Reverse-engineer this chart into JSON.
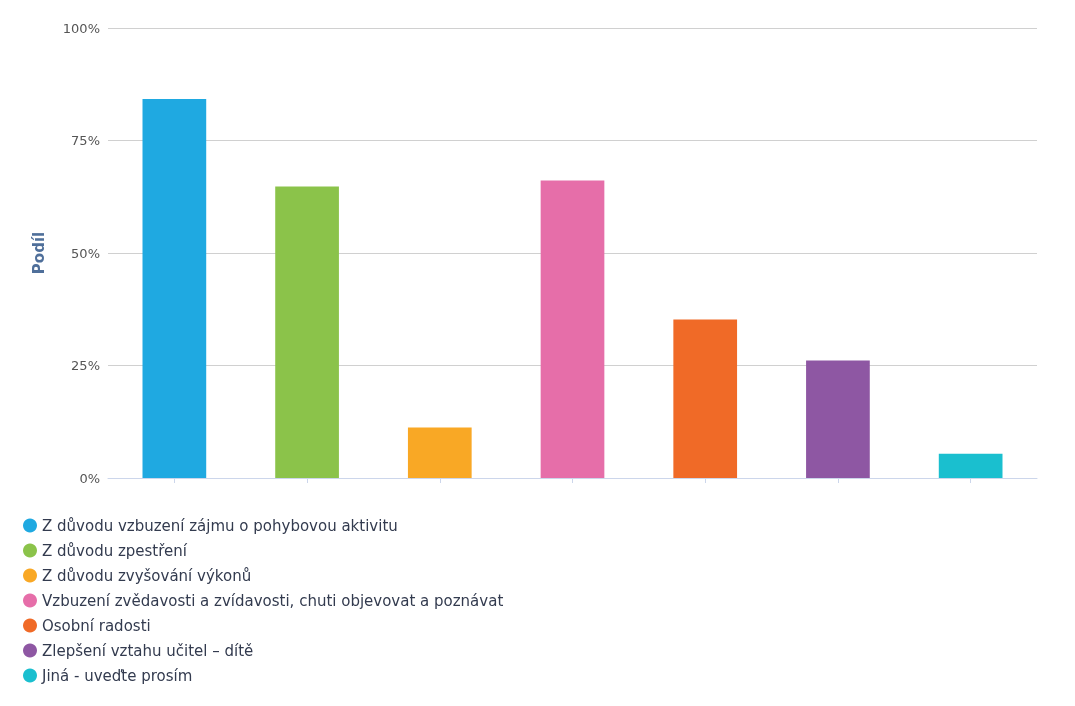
{
  "chart_data": {
    "type": "bar",
    "ylabel": "Podíl",
    "categories": [
      null,
      null,
      null,
      null,
      null,
      null,
      null
    ],
    "series": [
      {
        "name": "Z důvodu vzbuzení zájmu o pohybovou aktivitu",
        "color": "#1fa9e1",
        "values": [
          84.2,
          null,
          null,
          null,
          null,
          null,
          null
        ]
      },
      {
        "name": "Z důvodu zpestření",
        "color": "#8bc34a",
        "values": [
          null,
          64.8,
          null,
          null,
          null,
          null,
          null
        ]
      },
      {
        "name": "Z důvodu zvyšování výkonů",
        "color": "#f9a825",
        "values": [
          null,
          null,
          11.2,
          null,
          null,
          null,
          null
        ]
      },
      {
        "name": "Vzbuzení zvědavosti a zvídavosti, chuti objevovat a poznávat",
        "color": "#e66ea9",
        "values": [
          null,
          null,
          null,
          66.1,
          null,
          null,
          null
        ]
      },
      {
        "name": "Osobní radosti",
        "color": "#f06a27",
        "values": [
          null,
          null,
          null,
          null,
          35.2,
          null,
          null
        ]
      },
      {
        "name": "Zlepšení vztahu učitel – dítě",
        "color": "#8e57a3",
        "values": [
          null,
          null,
          null,
          null,
          null,
          26.1,
          null
        ]
      },
      {
        "name": "Jiná - uveďte prosím",
        "color": "#1abfcf",
        "values": [
          null,
          null,
          null,
          null,
          null,
          null,
          5.4
        ]
      }
    ],
    "ylim": [
      0,
      100
    ],
    "yticks": [
      {
        "value": 0,
        "label": "0%"
      },
      {
        "value": 25,
        "label": "25%"
      },
      {
        "value": 50,
        "label": "50%"
      },
      {
        "value": 75,
        "label": "75%"
      },
      {
        "value": 100,
        "label": "100%"
      }
    ],
    "grid": "y",
    "legend": "bottom left"
  }
}
